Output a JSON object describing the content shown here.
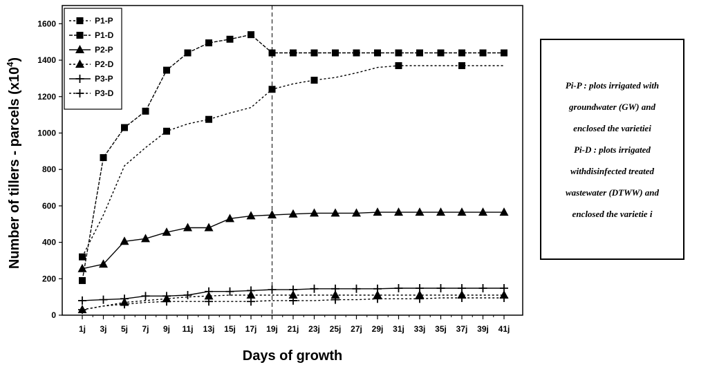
{
  "chart_data": {
    "type": "line",
    "title": "",
    "xlabel": "Days of growth",
    "ylabel_main": "Number of tillers - parcels (x10",
    "ylabel_exp": "4",
    "ylabel_close": ")",
    "ylim": [
      0,
      1700
    ],
    "yticks": [
      0,
      200,
      400,
      600,
      800,
      1000,
      1200,
      1400,
      1600
    ],
    "categories": [
      "1j",
      "3j",
      "5j",
      "7j",
      "9j",
      "11j",
      "13j",
      "15j",
      "17j",
      "19j",
      "21j",
      "23j",
      "25j",
      "27j",
      "29j",
      "31j",
      "33j",
      "35j",
      "37j",
      "39j",
      "41j"
    ],
    "vline_at": "19j",
    "legend_position": "top-left",
    "series": [
      {
        "name": "P1-P",
        "marker": "square",
        "dash": "3,3",
        "values": [
          320,
          550,
          820,
          920,
          1010,
          1050,
          1075,
          1110,
          1140,
          1240,
          1270,
          1290,
          1305,
          1330,
          1360,
          1370,
          1370,
          1370,
          1370,
          1370,
          1370
        ],
        "marker_idx": [
          0,
          4,
          6,
          9,
          11,
          15,
          18
        ]
      },
      {
        "name": "P1-D",
        "marker": "square",
        "dash": "5,2",
        "values": [
          190,
          865,
          1030,
          1120,
          1345,
          1440,
          1495,
          1515,
          1540,
          1440,
          1440,
          1440,
          1440,
          1440,
          1440,
          1440,
          1440,
          1440,
          1440,
          1440,
          1440
        ],
        "marker_idx": [
          0,
          1,
          2,
          3,
          4,
          5,
          6,
          7,
          8,
          9,
          10,
          11,
          12,
          13,
          14,
          15,
          16,
          17,
          18,
          19,
          20
        ]
      },
      {
        "name": "P2-P",
        "marker": "triangle",
        "dash": "",
        "values": [
          255,
          280,
          405,
          420,
          455,
          480,
          480,
          530,
          545,
          550,
          555,
          560,
          560,
          560,
          565,
          565,
          565,
          565,
          565,
          565,
          565
        ],
        "marker_idx": [
          0,
          1,
          2,
          3,
          4,
          5,
          6,
          7,
          8,
          9,
          10,
          11,
          12,
          13,
          14,
          15,
          16,
          17,
          18,
          19,
          20
        ]
      },
      {
        "name": "P2-D",
        "marker": "triangle",
        "dash": "3,3",
        "values": [
          30,
          50,
          70,
          80,
          90,
          100,
          105,
          110,
          110,
          110,
          110,
          110,
          110,
          110,
          110,
          110,
          110,
          110,
          110,
          110,
          110
        ],
        "marker_idx": [
          0,
          2,
          4,
          6,
          8,
          10,
          12,
          14,
          16,
          18,
          20
        ]
      },
      {
        "name": "P3-P",
        "marker": "plus",
        "dash": "",
        "values": [
          80,
          85,
          90,
          105,
          105,
          110,
          130,
          130,
          135,
          140,
          140,
          145,
          145,
          145,
          145,
          148,
          148,
          148,
          148,
          148,
          148
        ],
        "marker_idx": [
          0,
          1,
          2,
          3,
          4,
          5,
          6,
          7,
          8,
          9,
          10,
          11,
          12,
          13,
          14,
          15,
          16,
          17,
          18,
          19,
          20
        ]
      },
      {
        "name": "P3-D",
        "marker": "plus",
        "dash": "3,3",
        "values": [
          30,
          50,
          60,
          70,
          75,
          75,
          75,
          75,
          75,
          80,
          80,
          80,
          85,
          85,
          90,
          90,
          90,
          95,
          95,
          95,
          95
        ],
        "marker_idx": [
          0,
          2,
          4,
          6,
          8,
          10,
          12,
          14,
          16,
          18,
          20
        ]
      }
    ]
  },
  "note": {
    "lines": [
      "Pi-P : plots irrigated with",
      "groundwater (GW)  and",
      "enclosed the varietiei",
      "Pi-D : plots irrigated",
      "withdisinfected treated",
      "wastewater (DTWW)  and",
      "enclosed the varietie i"
    ]
  }
}
